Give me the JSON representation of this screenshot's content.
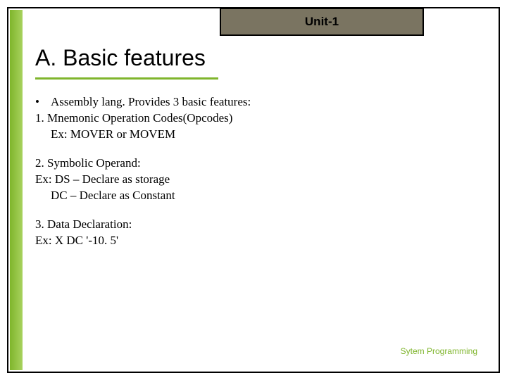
{
  "colors": {
    "accent_green": "#7fb52c",
    "tab_bg": "#7a7461",
    "border": "#000000",
    "text": "#000000",
    "background": "#ffffff"
  },
  "typography": {
    "heading_font": "Arial",
    "heading_size_pt": 24,
    "body_font": "Times New Roman",
    "body_size_pt": 13,
    "footer_size_pt": 9
  },
  "unit_label": "Unit-1",
  "heading": "A. Basic features",
  "bullet": "Assembly lang. Provides 3 basic features:",
  "item1_title": "1. Mnemonic Operation Codes(Opcodes)",
  "item1_ex": "Ex: MOVER or MOVEM",
  "item2_title": "2. Symbolic Operand:",
  "item2_ex_line1": "Ex: DS – Declare as storage",
  "item2_ex_line2": "DC – Declare as Constant",
  "item3_title": "3. Data Declaration:",
  "item3_ex": "Ex: X DC '-10. 5'",
  "footer": "Sytem Programming"
}
